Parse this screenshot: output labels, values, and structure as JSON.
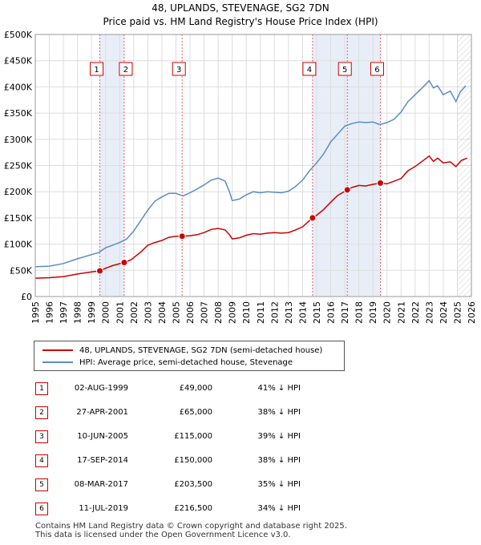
{
  "chart_data": {
    "type": "line",
    "title": "48, UPLANDS, STEVENAGE, SG2 7DN",
    "subtitle": "Price paid vs. HM Land Registry's House Price Index (HPI)",
    "xlabel": "",
    "ylabel": "",
    "xlim": [
      1995,
      2026
    ],
    "ylim": [
      0,
      500000
    ],
    "x_ticks": [
      "1995",
      "1996",
      "1997",
      "1998",
      "1999",
      "2000",
      "2001",
      "2002",
      "2003",
      "2004",
      "2005",
      "2006",
      "2007",
      "2008",
      "2009",
      "2010",
      "2011",
      "2012",
      "2013",
      "2014",
      "2015",
      "2016",
      "2017",
      "2018",
      "2019",
      "2020",
      "2021",
      "2022",
      "2023",
      "2024",
      "2025",
      "2026"
    ],
    "y_ticks": [
      {
        "value": 0,
        "label": "£0"
      },
      {
        "value": 50000,
        "label": "£50K"
      },
      {
        "value": 100000,
        "label": "£100K"
      },
      {
        "value": 150000,
        "label": "£150K"
      },
      {
        "value": 200000,
        "label": "£200K"
      },
      {
        "value": 250000,
        "label": "£250K"
      },
      {
        "value": 300000,
        "label": "£300K"
      },
      {
        "value": 350000,
        "label": "£350K"
      },
      {
        "value": 400000,
        "label": "£400K"
      },
      {
        "value": 450000,
        "label": "£450K"
      },
      {
        "value": 500000,
        "label": "£500K"
      }
    ],
    "grid": true,
    "series": [
      {
        "name": "48, UPLANDS, STEVENAGE, SG2 7DN (semi-detached house)",
        "color": "#cc0000",
        "points": [
          [
            1995.0,
            35000
          ],
          [
            1996.0,
            36000
          ],
          [
            1997.0,
            38000
          ],
          [
            1998.0,
            43000
          ],
          [
            1999.0,
            47000
          ],
          [
            1999.59,
            49000
          ],
          [
            2000.0,
            54000
          ],
          [
            2000.5,
            59000
          ],
          [
            2001.32,
            65000
          ],
          [
            2001.8,
            70000
          ],
          [
            2002.5,
            85000
          ],
          [
            2003.0,
            98000
          ],
          [
            2003.5,
            103000
          ],
          [
            2004.0,
            107000
          ],
          [
            2004.5,
            113000
          ],
          [
            2005.0,
            115000
          ],
          [
            2005.44,
            115000
          ],
          [
            2006.0,
            116000
          ],
          [
            2006.5,
            118000
          ],
          [
            2007.0,
            122000
          ],
          [
            2007.5,
            128000
          ],
          [
            2008.0,
            130000
          ],
          [
            2008.5,
            127000
          ],
          [
            2008.8,
            118000
          ],
          [
            2009.0,
            110000
          ],
          [
            2009.5,
            112000
          ],
          [
            2010.0,
            117000
          ],
          [
            2010.5,
            120000
          ],
          [
            2011.0,
            119000
          ],
          [
            2011.5,
            121000
          ],
          [
            2012.0,
            122000
          ],
          [
            2012.5,
            121000
          ],
          [
            2013.0,
            122000
          ],
          [
            2013.5,
            127000
          ],
          [
            2014.0,
            133000
          ],
          [
            2014.71,
            150000
          ],
          [
            2015.0,
            155000
          ],
          [
            2015.5,
            166000
          ],
          [
            2016.0,
            180000
          ],
          [
            2016.5,
            193000
          ],
          [
            2017.18,
            203500
          ],
          [
            2017.5,
            208000
          ],
          [
            2018.0,
            212000
          ],
          [
            2018.5,
            211000
          ],
          [
            2019.0,
            214000
          ],
          [
            2019.53,
            216500
          ],
          [
            2020.0,
            215000
          ],
          [
            2020.5,
            220000
          ],
          [
            2021.0,
            225000
          ],
          [
            2021.5,
            240000
          ],
          [
            2022.0,
            248000
          ],
          [
            2022.5,
            258000
          ],
          [
            2023.0,
            268000
          ],
          [
            2023.3,
            258000
          ],
          [
            2023.6,
            264000
          ],
          [
            2024.0,
            255000
          ],
          [
            2024.5,
            257000
          ],
          [
            2024.9,
            248000
          ],
          [
            2025.3,
            260000
          ],
          [
            2025.7,
            264000
          ]
        ]
      },
      {
        "name": "HPI: Average price, semi-detached house, Stevenage",
        "color": "#5b8cc6",
        "points": [
          [
            1995.0,
            57000
          ],
          [
            1996.0,
            58000
          ],
          [
            1997.0,
            63000
          ],
          [
            1998.0,
            72000
          ],
          [
            1999.0,
            80000
          ],
          [
            1999.5,
            84000
          ],
          [
            2000.0,
            93000
          ],
          [
            2000.5,
            98000
          ],
          [
            2001.0,
            103000
          ],
          [
            2001.5,
            110000
          ],
          [
            2002.0,
            125000
          ],
          [
            2002.5,
            145000
          ],
          [
            2003.0,
            165000
          ],
          [
            2003.5,
            182000
          ],
          [
            2004.0,
            190000
          ],
          [
            2004.5,
            197000
          ],
          [
            2005.0,
            197000
          ],
          [
            2005.5,
            192000
          ],
          [
            2006.0,
            198000
          ],
          [
            2006.5,
            205000
          ],
          [
            2007.0,
            213000
          ],
          [
            2007.5,
            222000
          ],
          [
            2008.0,
            226000
          ],
          [
            2008.5,
            220000
          ],
          [
            2008.8,
            200000
          ],
          [
            2009.0,
            183000
          ],
          [
            2009.5,
            186000
          ],
          [
            2010.0,
            194000
          ],
          [
            2010.5,
            200000
          ],
          [
            2011.0,
            198000
          ],
          [
            2011.5,
            200000
          ],
          [
            2012.0,
            199000
          ],
          [
            2012.5,
            198000
          ],
          [
            2013.0,
            201000
          ],
          [
            2013.5,
            210000
          ],
          [
            2014.0,
            222000
          ],
          [
            2014.5,
            240000
          ],
          [
            2015.0,
            255000
          ],
          [
            2015.5,
            272000
          ],
          [
            2016.0,
            295000
          ],
          [
            2016.5,
            310000
          ],
          [
            2017.0,
            325000
          ],
          [
            2017.5,
            330000
          ],
          [
            2018.0,
            333000
          ],
          [
            2018.5,
            332000
          ],
          [
            2019.0,
            333000
          ],
          [
            2019.5,
            328000
          ],
          [
            2020.0,
            332000
          ],
          [
            2020.5,
            338000
          ],
          [
            2021.0,
            352000
          ],
          [
            2021.5,
            372000
          ],
          [
            2022.0,
            385000
          ],
          [
            2022.5,
            398000
          ],
          [
            2023.0,
            412000
          ],
          [
            2023.3,
            398000
          ],
          [
            2023.6,
            402000
          ],
          [
            2024.0,
            385000
          ],
          [
            2024.5,
            392000
          ],
          [
            2024.9,
            372000
          ],
          [
            2025.2,
            390000
          ],
          [
            2025.6,
            402000
          ]
        ]
      }
    ],
    "sales": [
      {
        "label": "1",
        "date": "02-AUG-1999",
        "x": 1999.59,
        "price": 49000,
        "price_label": "£49,000",
        "hpi_delta": "41% ↓ HPI"
      },
      {
        "label": "2",
        "date": "27-APR-2001",
        "x": 2001.32,
        "price": 65000,
        "price_label": "£65,000",
        "hpi_delta": "38% ↓ HPI"
      },
      {
        "label": "3",
        "date": "10-JUN-2005",
        "x": 2005.44,
        "price": 115000,
        "price_label": "£115,000",
        "hpi_delta": "39% ↓ HPI"
      },
      {
        "label": "4",
        "date": "17-SEP-2014",
        "x": 2014.71,
        "price": 150000,
        "price_label": "£150,000",
        "hpi_delta": "38% ↓ HPI"
      },
      {
        "label": "5",
        "date": "08-MAR-2017",
        "x": 2017.18,
        "price": 203500,
        "price_label": "£203,500",
        "hpi_delta": "35% ↓ HPI"
      },
      {
        "label": "6",
        "date": "11-JUL-2019",
        "x": 2019.53,
        "price": 216500,
        "price_label": "£216,500",
        "hpi_delta": "34% ↓ HPI"
      }
    ],
    "shaded_ranges": [
      [
        1999.59,
        2001.32
      ],
      [
        2014.71,
        2017.18
      ],
      [
        2017.18,
        2019.53
      ]
    ],
    "projection_start": 2025.0
  },
  "legend": {
    "property_label": "48, UPLANDS, STEVENAGE, SG2 7DN (semi-detached house)",
    "hpi_label": "HPI: Average price, semi-detached house, Stevenage",
    "property_color": "#cc0000",
    "hpi_color": "#5b8cc6"
  },
  "footer": {
    "line1": "Contains HM Land Registry data © Crown copyright and database right 2025.",
    "line2": "This data is licensed under the Open Government Licence v3.0."
  }
}
